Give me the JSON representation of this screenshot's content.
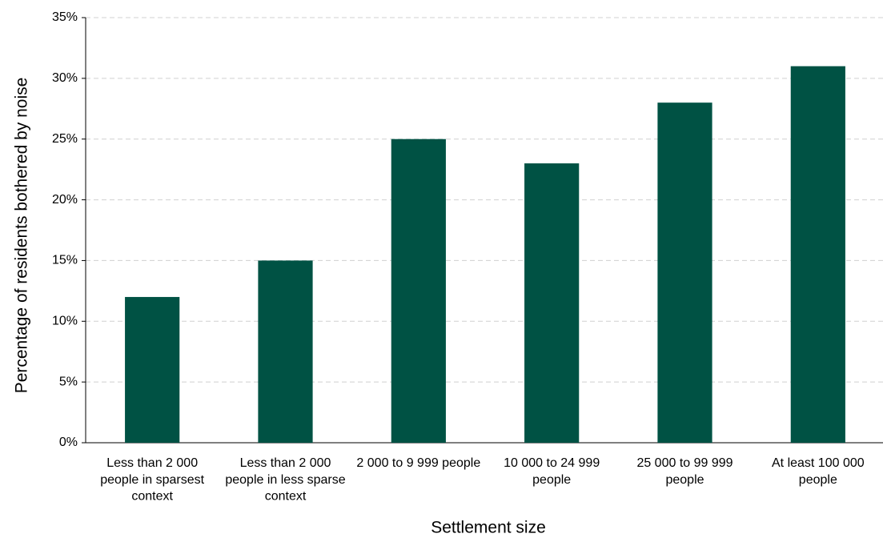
{
  "chart_data": {
    "type": "bar",
    "x_label": "Settlement size",
    "y_label": "Percentage of residents bothered by noise",
    "categories": [
      "Less than 2 000 people in sparsest context",
      "Less than 2 000 people in less sparse context",
      "2 000 to 9 999 people",
      "10 000 to 24 999 people",
      "25 000 to 99 999 people",
      "At least 100 000 people"
    ],
    "values": [
      12,
      15,
      25,
      23,
      28,
      31
    ],
    "color": "#005244",
    "ylim": [
      0,
      35
    ],
    "yticks": [
      {
        "value": 0,
        "label": "0%"
      },
      {
        "value": 5,
        "label": "5%"
      },
      {
        "value": 10,
        "label": "10%"
      },
      {
        "value": 15,
        "label": "15%"
      },
      {
        "value": 20,
        "label": "20%"
      },
      {
        "value": 25,
        "label": "25%"
      },
      {
        "value": 30,
        "label": "30%"
      },
      {
        "value": 35,
        "label": "35%"
      }
    ],
    "grid": true
  }
}
